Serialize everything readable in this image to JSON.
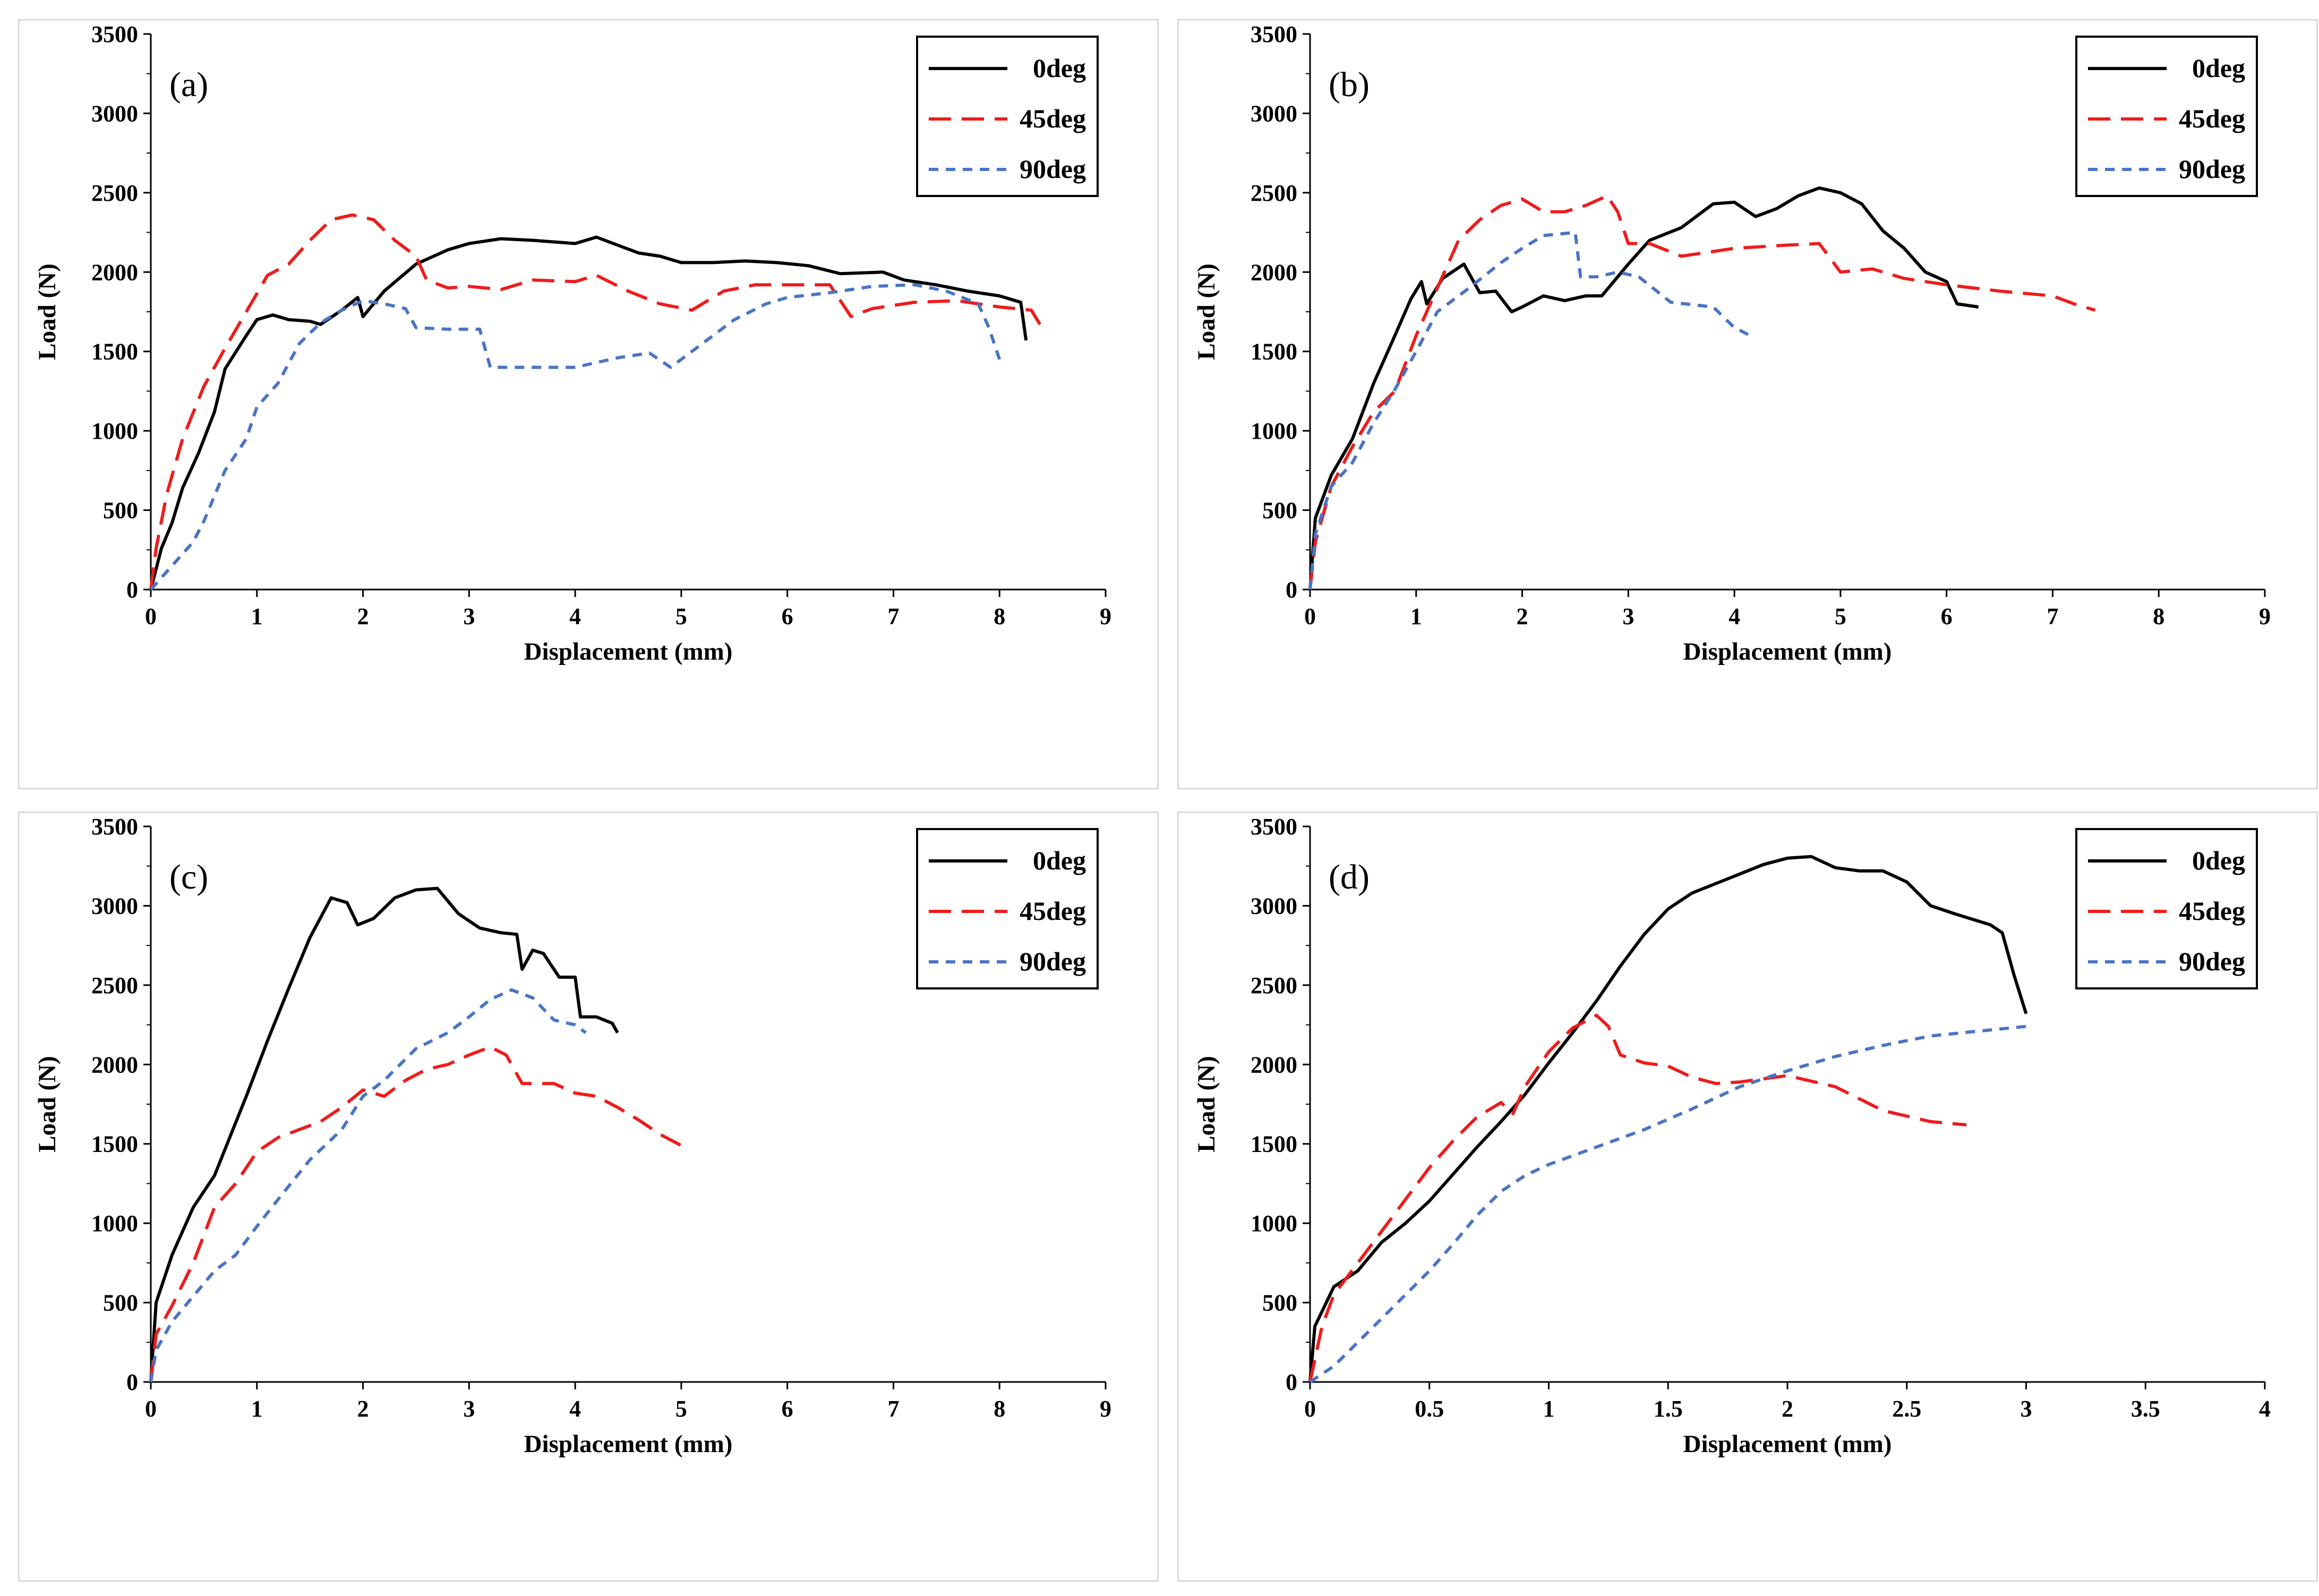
{
  "figure": {
    "series_styles": [
      {
        "name": "0deg",
        "color": "#000000",
        "dash": "solid"
      },
      {
        "name": "45deg",
        "color": "#ee1c1c",
        "dash": "long-dash"
      },
      {
        "name": "90deg",
        "color": "#4a74c4",
        "dash": "short-dash"
      }
    ]
  },
  "chart_data": [
    {
      "type": "line",
      "panel_label": "(a)",
      "xlabel": "Displacement (mm)",
      "ylabel": "Load (N)",
      "xlim": [
        0,
        9
      ],
      "ylim": [
        0,
        3500
      ],
      "xticks": [
        "0",
        "1",
        "2",
        "3",
        "4",
        "5",
        "6",
        "7",
        "8",
        "9"
      ],
      "yticks": [
        "0",
        "500",
        "1000",
        "1500",
        "2000",
        "2500",
        "3000",
        "3500"
      ],
      "legend_position": "top-right",
      "series": [
        {
          "name": "0deg",
          "x": [
            0,
            0.1,
            0.2,
            0.3,
            0.45,
            0.6,
            0.7,
            0.9,
            1.0,
            1.15,
            1.3,
            1.5,
            1.6,
            1.8,
            1.95,
            2.0,
            2.2,
            2.5,
            2.8,
            3.0,
            3.3,
            3.6,
            3.8,
            4.0,
            4.2,
            4.4,
            4.6,
            4.8,
            5.0,
            5.3,
            5.6,
            5.9,
            6.2,
            6.5,
            6.9,
            7.1,
            7.4,
            7.7,
            8.0,
            8.2,
            8.25
          ],
          "y": [
            0,
            260,
            420,
            640,
            860,
            1120,
            1390,
            1600,
            1700,
            1730,
            1700,
            1690,
            1670,
            1760,
            1840,
            1720,
            1880,
            2050,
            2140,
            2180,
            2210,
            2200,
            2190,
            2180,
            2220,
            2170,
            2120,
            2100,
            2060,
            2060,
            2070,
            2060,
            2040,
            1990,
            2000,
            1950,
            1920,
            1880,
            1850,
            1810,
            1570
          ]
        },
        {
          "name": "45deg",
          "x": [
            0,
            0.05,
            0.15,
            0.3,
            0.5,
            0.7,
            0.9,
            1.1,
            1.3,
            1.5,
            1.7,
            1.9,
            2.1,
            2.3,
            2.5,
            2.6,
            2.8,
            3.0,
            3.3,
            3.6,
            4.0,
            4.2,
            4.5,
            4.8,
            5.1,
            5.4,
            5.7,
            6.0,
            6.4,
            6.6,
            6.8,
            7.2,
            7.6,
            8.0,
            8.3,
            8.4
          ],
          "y": [
            0,
            260,
            600,
            950,
            1280,
            1520,
            1750,
            1980,
            2050,
            2200,
            2330,
            2360,
            2330,
            2200,
            2100,
            1950,
            1900,
            1910,
            1890,
            1950,
            1940,
            1980,
            1880,
            1800,
            1760,
            1880,
            1920,
            1920,
            1920,
            1720,
            1770,
            1810,
            1820,
            1780,
            1760,
            1650
          ]
        },
        {
          "name": "90deg",
          "x": [
            0,
            0.2,
            0.4,
            0.5,
            0.7,
            0.9,
            1.0,
            1.2,
            1.4,
            1.6,
            1.8,
            2.0,
            2.2,
            2.4,
            2.5,
            2.8,
            3.1,
            3.2,
            3.5,
            4.0,
            4.4,
            4.7,
            4.9,
            5.2,
            5.5,
            5.8,
            6.0,
            6.4,
            6.8,
            7.2,
            7.5,
            7.8,
            7.9,
            8.0
          ],
          "y": [
            0,
            150,
            300,
            430,
            750,
            950,
            1150,
            1300,
            1550,
            1680,
            1760,
            1820,
            1800,
            1770,
            1650,
            1640,
            1640,
            1400,
            1400,
            1400,
            1460,
            1490,
            1400,
            1550,
            1700,
            1800,
            1840,
            1870,
            1910,
            1920,
            1880,
            1800,
            1650,
            1450
          ]
        }
      ]
    },
    {
      "type": "line",
      "panel_label": "(b)",
      "xlabel": "Displacement (mm)",
      "ylabel": "Load (N)",
      "xlim": [
        0,
        9
      ],
      "ylim": [
        0,
        3500
      ],
      "xticks": [
        "0",
        "1",
        "2",
        "3",
        "4",
        "5",
        "6",
        "7",
        "8",
        "9"
      ],
      "yticks": [
        "0",
        "500",
        "1000",
        "1500",
        "2000",
        "2500",
        "3000",
        "3500"
      ],
      "legend_position": "top-right",
      "series": [
        {
          "name": "0deg",
          "x": [
            0,
            0.05,
            0.2,
            0.4,
            0.6,
            0.8,
            0.95,
            1.05,
            1.1,
            1.25,
            1.45,
            1.6,
            1.75,
            1.9,
            2.0,
            2.2,
            2.4,
            2.6,
            2.75,
            3.0,
            3.2,
            3.5,
            3.8,
            4.0,
            4.2,
            4.4,
            4.6,
            4.8,
            5.0,
            5.2,
            5.4,
            5.6,
            5.8,
            6.0,
            6.1,
            6.3
          ],
          "y": [
            0,
            450,
            720,
            950,
            1300,
            1600,
            1830,
            1940,
            1800,
            1960,
            2050,
            1870,
            1880,
            1750,
            1780,
            1850,
            1820,
            1850,
            1850,
            2050,
            2200,
            2280,
            2430,
            2440,
            2350,
            2400,
            2480,
            2530,
            2500,
            2430,
            2260,
            2150,
            2000,
            1940,
            1800,
            1780
          ]
        },
        {
          "name": "45deg",
          "x": [
            0,
            0.05,
            0.2,
            0.4,
            0.6,
            0.8,
            1.0,
            1.2,
            1.4,
            1.6,
            1.8,
            2.0,
            2.2,
            2.4,
            2.6,
            2.8,
            2.9,
            3.0,
            3.2,
            3.5,
            4.0,
            4.5,
            4.8,
            5.0,
            5.3,
            5.6,
            6.0,
            6.5,
            7.0,
            7.2,
            7.4
          ],
          "y": [
            0,
            300,
            650,
            900,
            1120,
            1250,
            1600,
            1900,
            2200,
            2330,
            2420,
            2460,
            2380,
            2380,
            2420,
            2480,
            2380,
            2180,
            2180,
            2100,
            2150,
            2170,
            2180,
            2000,
            2020,
            1960,
            1920,
            1880,
            1850,
            1800,
            1760
          ]
        },
        {
          "name": "90deg",
          "x": [
            0,
            0.05,
            0.2,
            0.4,
            0.6,
            0.8,
            1.0,
            1.2,
            1.5,
            1.8,
            2.0,
            2.2,
            2.5,
            2.55,
            2.7,
            2.9,
            3.1,
            3.4,
            3.8,
            4.0,
            4.15
          ],
          "y": [
            0,
            350,
            650,
            800,
            1050,
            1260,
            1500,
            1750,
            1900,
            2060,
            2150,
            2230,
            2250,
            1970,
            1970,
            2000,
            1970,
            1810,
            1780,
            1650,
            1600
          ]
        }
      ]
    },
    {
      "type": "line",
      "panel_label": "(c)",
      "xlabel": "Displacement (mm)",
      "ylabel": "Load (N)",
      "xlim": [
        0,
        9
      ],
      "ylim": [
        0,
        3500
      ],
      "xticks": [
        "0",
        "1",
        "2",
        "3",
        "4",
        "5",
        "6",
        "7",
        "8",
        "9"
      ],
      "yticks": [
        "0",
        "500",
        "1000",
        "1500",
        "2000",
        "2500",
        "3000",
        "3500"
      ],
      "legend_position": "top-right",
      "series": [
        {
          "name": "0deg",
          "x": [
            0,
            0.05,
            0.2,
            0.4,
            0.6,
            0.75,
            0.9,
            1.1,
            1.3,
            1.5,
            1.7,
            1.85,
            1.95,
            2.1,
            2.3,
            2.5,
            2.7,
            2.9,
            3.1,
            3.3,
            3.45,
            3.5,
            3.6,
            3.7,
            3.85,
            4.0,
            4.05,
            4.2,
            4.35,
            4.4
          ],
          "y": [
            0,
            500,
            800,
            1100,
            1300,
            1550,
            1800,
            2150,
            2480,
            2800,
            3050,
            3020,
            2880,
            2920,
            3050,
            3100,
            3110,
            2950,
            2860,
            2830,
            2820,
            2600,
            2720,
            2700,
            2550,
            2550,
            2300,
            2300,
            2260,
            2200
          ]
        },
        {
          "name": "45deg",
          "x": [
            0,
            0.05,
            0.2,
            0.4,
            0.6,
            0.8,
            1.0,
            1.2,
            1.4,
            1.6,
            1.8,
            2.0,
            2.2,
            2.4,
            2.6,
            2.8,
            3.0,
            3.2,
            3.35,
            3.5,
            3.6,
            3.8,
            4.0,
            4.2,
            4.4,
            4.6,
            4.8,
            5.0
          ],
          "y": [
            0,
            300,
            480,
            750,
            1100,
            1250,
            1450,
            1540,
            1590,
            1640,
            1730,
            1840,
            1800,
            1900,
            1970,
            2000,
            2060,
            2110,
            2060,
            1880,
            1880,
            1880,
            1820,
            1800,
            1730,
            1650,
            1560,
            1490
          ]
        },
        {
          "name": "90deg",
          "x": [
            0,
            0.05,
            0.2,
            0.4,
            0.6,
            0.8,
            1.0,
            1.2,
            1.5,
            1.8,
            2.0,
            2.2,
            2.5,
            2.8,
            3.0,
            3.2,
            3.4,
            3.6,
            3.8,
            4.0,
            4.1
          ],
          "y": [
            0,
            200,
            380,
            540,
            700,
            800,
            980,
            1150,
            1400,
            1590,
            1800,
            1900,
            2100,
            2200,
            2300,
            2410,
            2470,
            2420,
            2280,
            2250,
            2200
          ]
        }
      ]
    },
    {
      "type": "line",
      "panel_label": "(d)",
      "xlabel": "Displacement (mm)",
      "ylabel": "Load (N)",
      "xlim": [
        0,
        4
      ],
      "ylim": [
        0,
        3500
      ],
      "xticks": [
        "0",
        "0.5",
        "1",
        "1.5",
        "2",
        "2.5",
        "3",
        "3.5",
        "4"
      ],
      "yticks": [
        "0",
        "500",
        "1000",
        "1500",
        "2000",
        "2500",
        "3000",
        "3500"
      ],
      "legend_position": "top-right",
      "series": [
        {
          "name": "0deg",
          "x": [
            0,
            0.02,
            0.1,
            0.2,
            0.3,
            0.4,
            0.5,
            0.6,
            0.7,
            0.8,
            0.9,
            1.0,
            1.1,
            1.2,
            1.3,
            1.4,
            1.5,
            1.6,
            1.7,
            1.8,
            1.9,
            2.0,
            2.1,
            2.2,
            2.3,
            2.4,
            2.5,
            2.6,
            2.7,
            2.85,
            2.9,
            2.95,
            3.0
          ],
          "y": [
            0,
            350,
            600,
            700,
            880,
            1000,
            1140,
            1310,
            1480,
            1640,
            1810,
            2010,
            2200,
            2400,
            2620,
            2820,
            2980,
            3080,
            3140,
            3200,
            3260,
            3300,
            3310,
            3240,
            3220,
            3220,
            3150,
            3000,
            2950,
            2880,
            2830,
            2560,
            2320
          ]
        },
        {
          "name": "45deg",
          "x": [
            0,
            0.05,
            0.1,
            0.2,
            0.3,
            0.4,
            0.5,
            0.6,
            0.7,
            0.8,
            0.85,
            0.9,
            1.0,
            1.1,
            1.2,
            1.25,
            1.3,
            1.4,
            1.5,
            1.6,
            1.7,
            1.8,
            2.0,
            2.2,
            2.4,
            2.6,
            2.75
          ],
          "y": [
            0,
            350,
            550,
            750,
            950,
            1150,
            1350,
            1520,
            1670,
            1760,
            1690,
            1860,
            2080,
            2230,
            2310,
            2240,
            2060,
            2010,
            1990,
            1920,
            1880,
            1890,
            1930,
            1860,
            1710,
            1640,
            1620
          ]
        },
        {
          "name": "90deg",
          "x": [
            0,
            0.1,
            0.2,
            0.3,
            0.4,
            0.5,
            0.6,
            0.7,
            0.8,
            0.9,
            1.0,
            1.2,
            1.4,
            1.6,
            1.8,
            2.0,
            2.2,
            2.4,
            2.6,
            2.8,
            3.0
          ],
          "y": [
            0,
            100,
            250,
            400,
            550,
            700,
            870,
            1050,
            1200,
            1300,
            1370,
            1480,
            1590,
            1720,
            1860,
            1960,
            2050,
            2120,
            2180,
            2210,
            2240
          ]
        }
      ]
    }
  ]
}
